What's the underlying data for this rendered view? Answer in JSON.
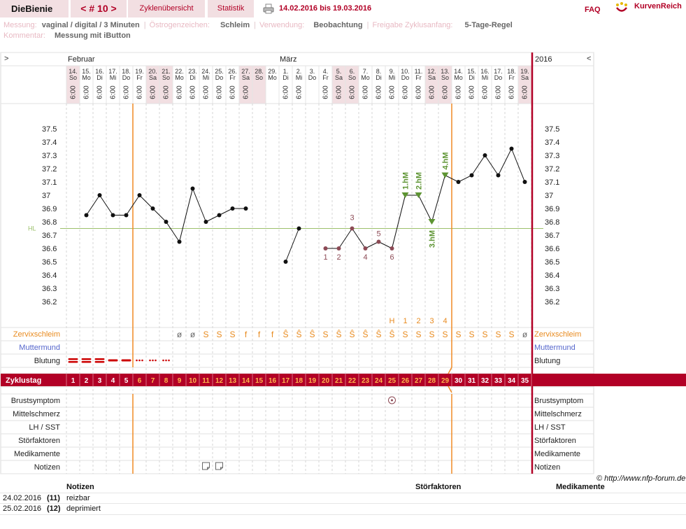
{
  "header": {
    "brand": "DieBienie",
    "cycle_nav": "< # 10 >",
    "tab_overview": "Zyklenübersicht",
    "tab_stats": "Statistik",
    "date_range": "14.02.2016 bis 19.03.2016",
    "faq": "FAQ",
    "logo_text": "KurvenReich"
  },
  "info": {
    "messung_label": "Messung:",
    "messung_value": "vaginal / digital / 3 Minuten",
    "oestrogen_label": "Östrogenzeichen:",
    "oestrogen_value": "Schleim",
    "verwendung_label": "Verwendung:",
    "verwendung_value": "Beobachtung",
    "freigabe_label": "Freigabe Zyklusanfang:",
    "freigabe_value": "5-Tage-Regel",
    "kommentar_label": "Kommentar:",
    "kommentar_value": "Messung mit iButton"
  },
  "chart_data": {
    "type": "line",
    "nav_left": ">",
    "nav_right": "<",
    "year": "2016",
    "month_feb": "Februar",
    "month_mar": "März",
    "dates": [
      "14.",
      "15.",
      "16.",
      "17.",
      "18.",
      "19.",
      "20.",
      "21.",
      "22.",
      "23.",
      "24.",
      "25.",
      "26.",
      "27.",
      "28.",
      "29.",
      "1.",
      "2.",
      "3.",
      "4.",
      "5.",
      "6.",
      "7.",
      "8.",
      "9.",
      "10.",
      "11.",
      "12.",
      "13.",
      "14.",
      "15.",
      "16.",
      "17.",
      "18.",
      "19."
    ],
    "weekdays": [
      "So",
      "Mo",
      "Di",
      "Mi",
      "Do",
      "Fr",
      "Sa",
      "So",
      "Mo",
      "Di",
      "Mi",
      "Do",
      "Fr",
      "Sa",
      "So",
      "Mo",
      "Di",
      "Mi",
      "Do",
      "Fr",
      "Sa",
      "So",
      "Mo",
      "Di",
      "Mi",
      "Do",
      "Fr",
      "Sa",
      "So",
      "Mo",
      "Di",
      "Mi",
      "Do",
      "Fr",
      "Sa"
    ],
    "weekend": [
      true,
      false,
      false,
      false,
      false,
      false,
      true,
      true,
      false,
      false,
      false,
      false,
      false,
      true,
      true,
      false,
      false,
      false,
      false,
      false,
      true,
      true,
      false,
      false,
      false,
      false,
      false,
      true,
      true,
      false,
      false,
      false,
      false,
      false,
      true
    ],
    "times": [
      "6:00",
      "6:00",
      "6:00",
      "6:00",
      "6:00",
      "6:00",
      "6:00",
      "6:00",
      "6:00",
      "6:00",
      "6:00",
      "6:00",
      "6:00",
      "6:00",
      "",
      "",
      "6:00",
      "6:00",
      "",
      "6:00",
      "6:00",
      "6:00",
      "6:00",
      "6:00",
      "6:00",
      "6:00",
      "6:00",
      "6:00",
      "6:00",
      "6:00",
      "6:00",
      "6:00",
      "6:00",
      "6:00",
      "6:00"
    ],
    "temperatures": [
      null,
      36.85,
      37.0,
      36.85,
      36.85,
      37.0,
      36.9,
      36.8,
      36.65,
      37.05,
      36.8,
      36.85,
      36.9,
      36.9,
      null,
      null,
      36.5,
      36.75,
      null,
      36.6,
      36.6,
      36.75,
      36.6,
      36.65,
      36.6,
      37.0,
      37.0,
      36.8,
      37.15,
      37.1,
      37.15,
      37.3,
      37.15,
      37.35,
      37.1
    ],
    "ylim": [
      36.1,
      37.6
    ],
    "yticks": [
      "37.5",
      "37.4",
      "37.3",
      "37.2",
      "37.1",
      "37",
      "36.9",
      "36.8",
      "36.7",
      "36.6",
      "36.5",
      "36.4",
      "36.3",
      "36.2"
    ],
    "hl_value": 36.75,
    "hl_label": "HL",
    "low_labels": [
      "1",
      "2",
      "3",
      "4",
      "5",
      "6"
    ],
    "high_labels": [
      "1.hM",
      "2.hM",
      "3.hM",
      "4.hM"
    ],
    "schleim_h_markers": [
      "H",
      "1",
      "2",
      "3",
      "4"
    ],
    "zervixschleim": [
      "",
      "",
      "",
      "",
      "",
      "",
      "",
      "",
      "ø",
      "ø",
      "S",
      "S",
      "S",
      "f",
      "f",
      "f",
      "Ŝ",
      "Ŝ",
      "Ŝ",
      "S",
      "Ŝ",
      "Ŝ",
      "Ŝ",
      "Ŝ",
      "Ŝ",
      "S",
      "S",
      "S",
      "S",
      "S",
      "S",
      "S",
      "S",
      "S",
      "ø"
    ],
    "cycle_days": [
      "1",
      "2",
      "3",
      "4",
      "5",
      "6",
      "7",
      "8",
      "9",
      "10",
      "11",
      "12",
      "13",
      "14",
      "15",
      "16",
      "17",
      "18",
      "19",
      "20",
      "21",
      "22",
      "23",
      "24",
      "25",
      "26",
      "27",
      "28",
      "29",
      "30",
      "31",
      "32",
      "33",
      "34",
      "35"
    ],
    "rows_left": [
      "Zervixschleim",
      "Muttermund",
      "Blutung",
      "Zyklustag",
      "Brustsymptom",
      "Mittelschmerz",
      "LH / SST",
      "Störfaktoren",
      "Medikamente",
      "Notizen"
    ],
    "rows_right": [
      "Zervixschleim",
      "Muttermund",
      "Blutung",
      "Brustsymptom",
      "Mittelschmerz",
      "LH / SST",
      "Störfaktoren",
      "Medikamente",
      "Notizen"
    ],
    "copyright": "© http://www.nfp-forum.de",
    "colors": {
      "accent": "#b20026",
      "ovulation_line": "#f08a24",
      "cover_line": "#9bbf6a",
      "high_marker": "#5d9432",
      "low_point": "#8c4a55",
      "schleim": "#e88a1e",
      "muttermund": "#5566cc"
    }
  },
  "footer": {
    "col_notes": "Notizen",
    "col_stoer": "Störfaktoren",
    "col_medi": "Medikamente",
    "rows": [
      {
        "date": "24.02.2016",
        "day": "(11)",
        "note": "reizbar"
      },
      {
        "date": "25.02.2016",
        "day": "(12)",
        "note": "deprimiert"
      }
    ]
  }
}
